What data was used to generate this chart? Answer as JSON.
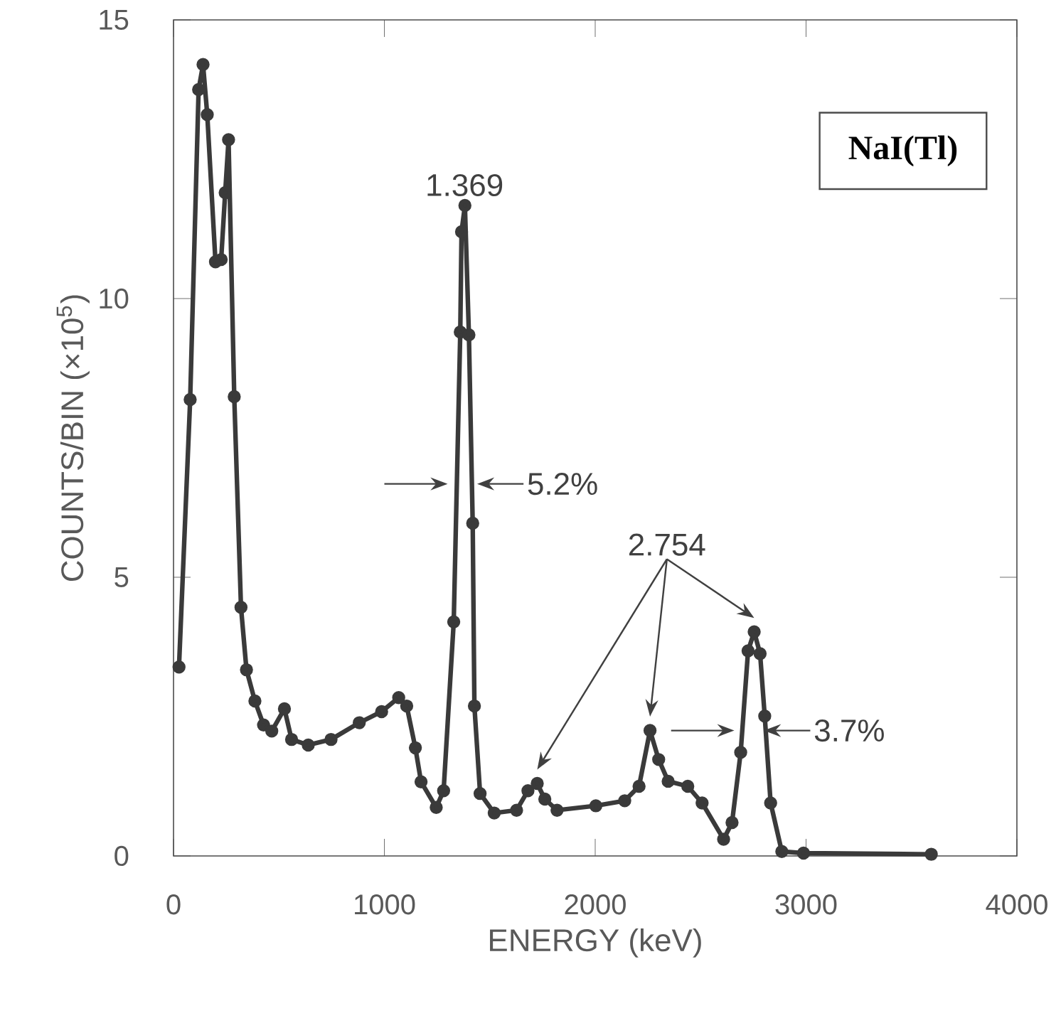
{
  "chart_data": {
    "type": "line",
    "xlabel": "ENERGY (keV)",
    "ylabel": "COUNTS/BIN (×10$^{5}$)",
    "xlim": [
      0,
      4000
    ],
    "ylim": [
      0,
      15
    ],
    "xticks": [
      0,
      1000,
      2000,
      3000,
      4000
    ],
    "yticks": [
      0,
      5,
      10,
      15
    ],
    "marker": "circle",
    "line_style": "solid",
    "series": [
      {
        "color": "#3a3a3a",
        "x": [
          26,
          79,
          119,
          140,
          160,
          199,
          226,
          245,
          261,
          288,
          320,
          346,
          386,
          427,
          466,
          526,
          560,
          639,
          747,
          881,
          987,
          1068,
          1106,
          1147,
          1174,
          1246,
          1281,
          1329,
          1360,
          1366,
          1382,
          1401,
          1419,
          1427,
          1454,
          1521,
          1627,
          1681,
          1725,
          1761,
          1819,
          2003,
          2140,
          2208,
          2260,
          2301,
          2346,
          2439,
          2507,
          2609,
          2649,
          2690,
          2725,
          2754,
          2782,
          2804,
          2832,
          2885,
          2988,
          3594
        ],
        "values": [
          3.39,
          8.19,
          13.75,
          14.2,
          13.3,
          10.66,
          10.7,
          11.9,
          12.85,
          8.24,
          4.46,
          3.34,
          2.78,
          2.35,
          2.24,
          2.64,
          2.09,
          1.99,
          2.09,
          2.39,
          2.59,
          2.84,
          2.69,
          1.94,
          1.33,
          0.87,
          1.17,
          4.2,
          9.4,
          11.2,
          11.67,
          9.35,
          5.97,
          2.69,
          1.12,
          0.77,
          0.82,
          1.17,
          1.3,
          1.02,
          0.82,
          0.9,
          0.99,
          1.25,
          2.25,
          1.73,
          1.34,
          1.25,
          0.95,
          0.3,
          0.6,
          1.86,
          3.68,
          4.02,
          3.63,
          2.51,
          0.95,
          0.08,
          0.05,
          0.03
        ]
      }
    ],
    "annotations": [
      "NaI(Tl)",
      "1.369",
      "5.2%",
      "2.754",
      "3.7%"
    ]
  }
}
